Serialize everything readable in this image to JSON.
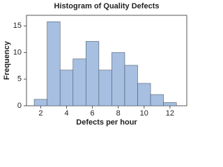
{
  "chart_data": {
    "type": "histogram",
    "title": "Histogram of Quality Defects",
    "x_label": "Defects per hour",
    "y_label": "Frequency",
    "bins": [
      1.5,
      2.5,
      3.5,
      4.5,
      5.5,
      6.5,
      7.5,
      8.5,
      9.5,
      10.5,
      11.5,
      12.5
    ],
    "values": [
      1.2,
      15.8,
      6.7,
      8.8,
      12.1,
      6.7,
      10,
      7.6,
      4.2,
      2.1,
      0.6
    ],
    "color": "#a7bfe0",
    "edgecolor": "#4a5a70",
    "xlim": [
      0.9,
      13.3
    ],
    "xticks": [
      2,
      4,
      6,
      8,
      10,
      12
    ],
    "ylim": [
      0,
      17
    ],
    "yticks": [
      0,
      5,
      10,
      15
    ],
    "grid": false
  }
}
